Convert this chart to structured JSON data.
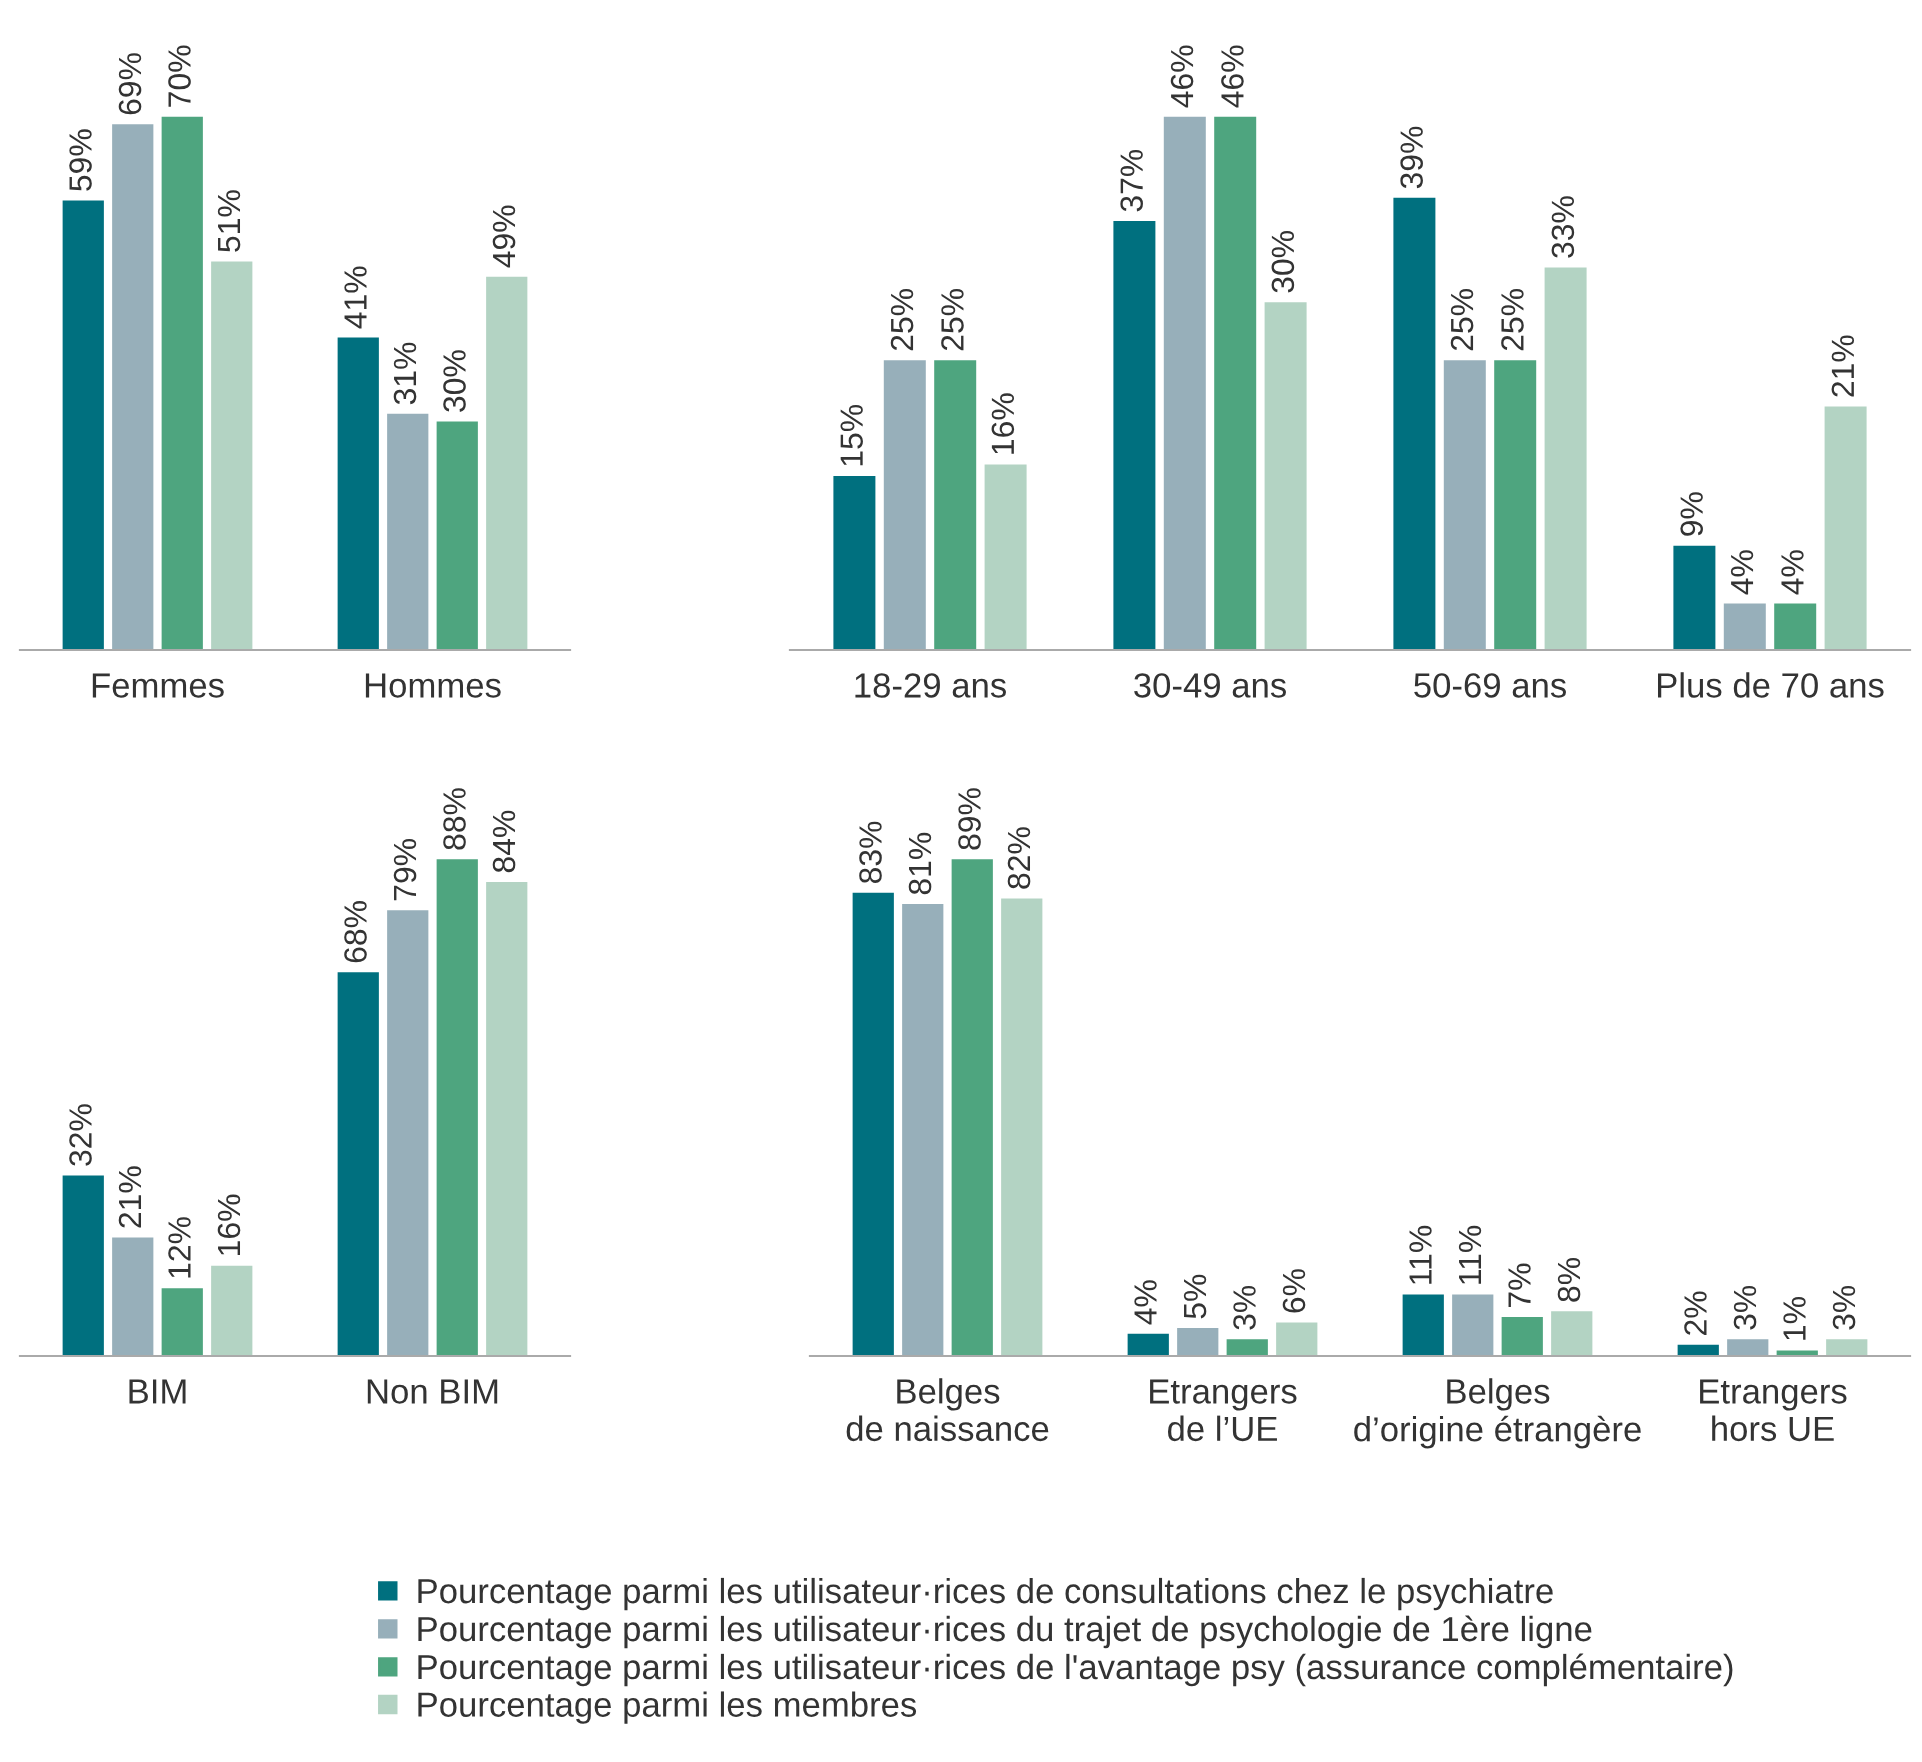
{
  "chart_data": [
    {
      "type": "bar",
      "categories": [
        "Femmes",
        "Hommes"
      ],
      "legend": "bottom",
      "series": [
        {
          "name": "Pourcentage parmi les utilisateur·rices de consultations chez le psychiatre",
          "color": "#00707f",
          "values": [
            59,
            41
          ],
          "value_labels": [
            "59%",
            "41%"
          ]
        },
        {
          "name": "Pourcentage parmi les utilisateur·rices du trajet de psychologie de 1ère ligne",
          "color": "#97afba",
          "values": [
            69,
            31
          ],
          "value_labels": [
            "69%",
            "31%"
          ]
        },
        {
          "name": "Pourcentage parmi les utilisateur·rices de l'avantage psy (assurance complémentaire)",
          "color": "#4ea57f",
          "values": [
            70,
            30
          ],
          "value_labels": [
            "70%",
            "30%"
          ]
        },
        {
          "name": "Pourcentage parmi les membres",
          "color": "#b3d3c3",
          "values": [
            51,
            49
          ],
          "value_labels": [
            "51%",
            "49%"
          ]
        }
      ]
    },
    {
      "type": "bar",
      "categories": [
        "18-29 ans",
        "30-49 ans",
        "50-69 ans",
        "Plus de 70 ans"
      ],
      "series": [
        {
          "color": "#00707f",
          "values": [
            15,
            37,
            39,
            9
          ],
          "value_labels": [
            "15%",
            "37%",
            "39%",
            "9%"
          ]
        },
        {
          "color": "#97afba",
          "values": [
            25,
            46,
            25,
            4
          ],
          "value_labels": [
            "25%",
            "46%",
            "25%",
            "4%"
          ]
        },
        {
          "color": "#4ea57f",
          "values": [
            25,
            46,
            25,
            4
          ],
          "value_labels": [
            "25%",
            "46%",
            "25%",
            "4%"
          ]
        },
        {
          "color": "#b3d3c3",
          "values": [
            16,
            30,
            33,
            21
          ],
          "value_labels": [
            "16%",
            "30%",
            "33%",
            "21%"
          ]
        }
      ]
    },
    {
      "type": "bar",
      "categories": [
        "BIM",
        "Non BIM"
      ],
      "series": [
        {
          "color": "#00707f",
          "values": [
            32,
            68
          ],
          "value_labels": [
            "32%",
            "68%"
          ]
        },
        {
          "color": "#97afba",
          "values": [
            21,
            79
          ],
          "value_labels": [
            "21%",
            "79%"
          ]
        },
        {
          "color": "#4ea57f",
          "values": [
            12,
            88
          ],
          "value_labels": [
            "12%",
            "88%"
          ]
        },
        {
          "color": "#b3d3c3",
          "values": [
            16,
            84
          ],
          "value_labels": [
            "16%",
            "84%"
          ]
        }
      ]
    },
    {
      "type": "bar",
      "categories": [
        "Belges\nde naissance",
        "Etrangers\nde l’UE",
        "Belges\nd’origine étrangère",
        "Etrangers\nhors UE"
      ],
      "series": [
        {
          "color": "#00707f",
          "values": [
            83,
            4,
            11,
            2
          ],
          "value_labels": [
            "83%",
            "4%",
            "11%",
            "2%"
          ]
        },
        {
          "color": "#97afba",
          "values": [
            81,
            5,
            11,
            3
          ],
          "value_labels": [
            "81%",
            "5%",
            "11%",
            "3%"
          ]
        },
        {
          "color": "#4ea57f",
          "values": [
            89,
            3,
            7,
            1
          ],
          "value_labels": [
            "89%",
            "3%",
            "7%",
            "1%"
          ]
        },
        {
          "color": "#b3d3c3",
          "values": [
            82,
            6,
            8,
            3
          ],
          "value_labels": [
            "82%",
            "6%",
            "8%",
            "3%"
          ]
        }
      ]
    }
  ]
}
